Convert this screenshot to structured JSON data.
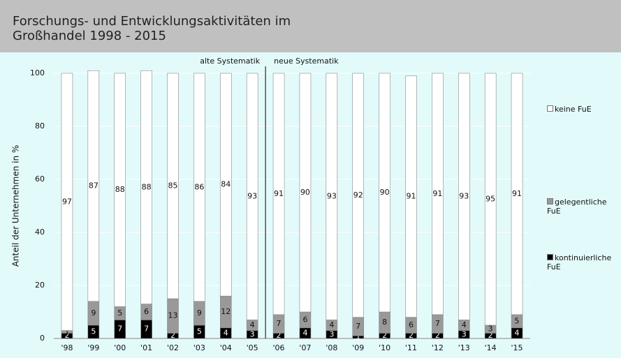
{
  "chart_data": {
    "type": "stacked_bar",
    "title": "Forschungs- und Entwicklungsaktivitäten im Großhandel 1998 - 2015",
    "y_label": "Anteil der Unternehmen in %",
    "annotations": [
      "alte Systematik",
      "neue Systematik"
    ],
    "categories": [
      "'98",
      "'99",
      "'00",
      "'01",
      "'02",
      "'03",
      "'04",
      "'05",
      "'06",
      "'07",
      "'08",
      "'09",
      "'10",
      "'11",
      "'12",
      "'13",
      "'14",
      "'15"
    ],
    "series": [
      {
        "name": "kontinuierliche FuE",
        "color": "#000000",
        "values": [
          2,
          5,
          7,
          7,
          2,
          5,
          4,
          3,
          2,
          4,
          3,
          1,
          2,
          2,
          2,
          3,
          2,
          4
        ]
      },
      {
        "name": "gelegentliche FuE",
        "color": "#999999",
        "values": [
          1,
          9,
          5,
          6,
          13,
          9,
          12,
          4,
          7,
          6,
          4,
          7,
          8,
          6,
          7,
          4,
          3,
          5
        ]
      },
      {
        "name": "keine FuE",
        "color": "#ffffff",
        "values": [
          97,
          87,
          88,
          88,
          85,
          86,
          84,
          93,
          91,
          90,
          93,
          92,
          90,
          91,
          91,
          93,
          95,
          91
        ]
      }
    ],
    "ylim": [
      0,
      100
    ],
    "yticks": [
      0,
      20,
      40,
      60,
      80,
      100
    ],
    "grid": true
  }
}
